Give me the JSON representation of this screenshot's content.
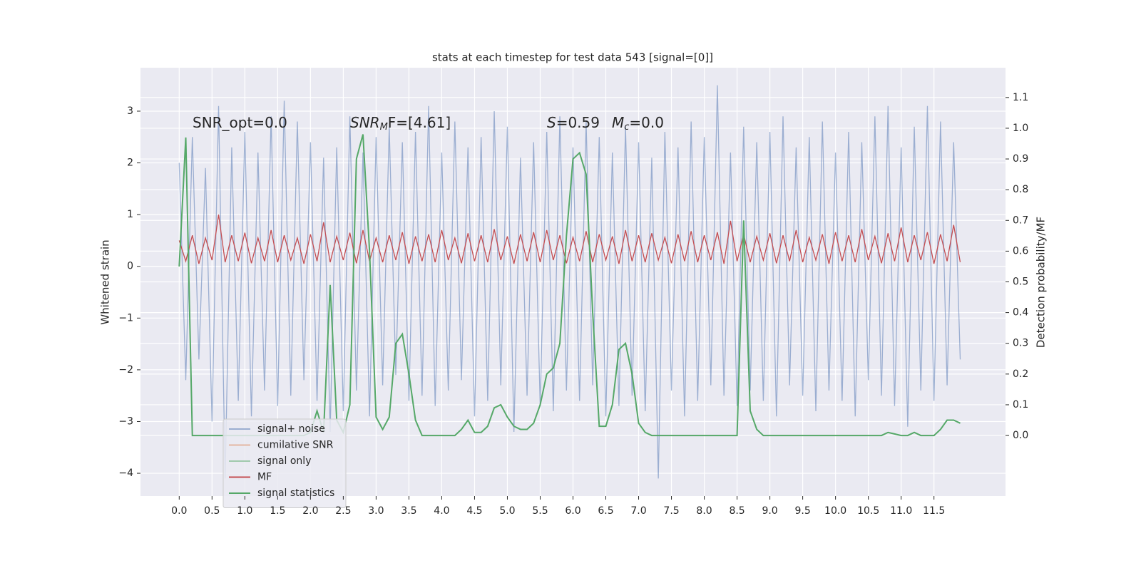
{
  "chart_data": {
    "type": "line",
    "title": "stats at each timestep for test data 543 [signal=[0]]",
    "y_label": "Whitened strain",
    "y2_label": "Detection probability/MF",
    "annotations": [
      {
        "text": "SNR_opt=0.0"
      },
      {
        "text": "SNR",
        "sub": "M",
        "tail": "F=[4.61]"
      },
      {
        "text": "S",
        "tail": "=0.59"
      },
      {
        "text": "M",
        "sub": "c",
        "tail": "=0.0"
      }
    ],
    "grid": true,
    "legend": "lower left",
    "xlim": [
      -0.59,
      12.59
    ],
    "ylim": [
      -4.44,
      3.84
    ],
    "y2lim": [
      -0.197,
      1.197
    ],
    "xticks": [
      {
        "value": 0,
        "label": "0.0"
      },
      0.5,
      {
        "value": 1,
        "label": "1.0"
      },
      1.5,
      {
        "value": 2,
        "label": "2.0"
      },
      2.5,
      {
        "value": 3,
        "label": "3.0"
      },
      3.5,
      {
        "value": 4,
        "label": "4.0"
      },
      4.5,
      {
        "value": 5,
        "label": "5.0"
      },
      5.5,
      {
        "value": 6,
        "label": "6.0"
      },
      6.5,
      {
        "value": 7,
        "label": "7.0"
      },
      7.5,
      {
        "value": 8,
        "label": "8.0"
      },
      8.5,
      {
        "value": 9,
        "label": "9.0"
      },
      9.5,
      {
        "value": 10,
        "label": "10.0"
      },
      10.5,
      {
        "value": 11,
        "label": "11.0"
      },
      11.5
    ],
    "yticks": [
      {
        "value": -4,
        "label": "−4"
      },
      {
        "value": -3,
        "label": "−3"
      },
      {
        "value": -2,
        "label": "−2"
      },
      {
        "value": -1,
        "label": "−1"
      },
      0,
      1,
      2,
      3
    ],
    "y2ticks": [
      {
        "value": 0,
        "label": "0.0"
      },
      0.1,
      0.2,
      0.3,
      0.4,
      0.5,
      0.6,
      0.7,
      0.8,
      0.9,
      {
        "value": 1,
        "label": "1.0"
      },
      1.1
    ],
    "x": [
      0,
      0.1,
      0.2,
      0.3,
      0.4,
      0.5,
      0.6,
      0.7,
      0.8,
      0.9,
      1,
      1.1,
      1.2,
      1.3,
      1.4,
      1.5,
      1.6,
      1.7,
      1.8,
      1.9,
      2,
      2.1,
      2.2,
      2.3,
      2.4,
      2.5,
      2.6,
      2.7,
      2.8,
      2.9,
      3,
      3.1,
      3.2,
      3.3,
      3.4,
      3.5,
      3.6,
      3.7,
      3.8,
      3.9,
      4,
      4.1,
      4.2,
      4.3,
      4.4,
      4.5,
      4.6,
      4.7,
      4.8,
      4.9,
      5,
      5.1,
      5.2,
      5.3,
      5.4,
      5.5,
      5.6,
      5.7,
      5.8,
      5.9,
      6,
      6.1,
      6.2,
      6.3,
      6.4,
      6.5,
      6.6,
      6.7,
      6.8,
      6.9,
      7,
      7.1,
      7.2,
      7.3,
      7.4,
      7.5,
      7.6,
      7.7,
      7.8,
      7.9,
      8,
      8.1,
      8.2,
      8.3,
      8.4,
      8.5,
      8.6,
      8.7,
      8.8,
      8.9,
      9,
      9.1,
      9.2,
      9.3,
      9.4,
      9.5,
      9.6,
      9.7,
      9.8,
      9.9,
      10,
      10.1,
      10.2,
      10.3,
      10.4,
      10.5,
      10.6,
      10.7,
      10.8,
      10.9,
      11,
      11.1,
      11.2,
      11.3,
      11.4,
      11.5,
      11.6,
      11.7,
      11.8,
      11.9
    ],
    "series": [
      {
        "name": "signal+ noise",
        "color": "#4c72b0",
        "alpha": 0.5,
        "values": [
          2.0,
          -2.2,
          2.5,
          -1.8,
          1.9,
          -3.0,
          3.1,
          -4.1,
          2.3,
          -2.6,
          2.6,
          -2.9,
          2.2,
          -2.4,
          2.9,
          -2.7,
          3.2,
          -2.5,
          2.8,
          -2.2,
          2.4,
          -2.6,
          2.1,
          -3.2,
          2.3,
          -2.8,
          2.9,
          -2.4,
          2.2,
          -2.9,
          2.5,
          -2.3,
          2.7,
          -2.1,
          2.4,
          -2.6,
          2.6,
          -2.5,
          3.1,
          -2.7,
          2.2,
          -2.4,
          2.8,
          -2.2,
          2.3,
          -2.9,
          2.5,
          -2.6,
          3.0,
          -2.3,
          2.7,
          -3.2,
          2.1,
          -2.5,
          2.4,
          -2.7,
          2.6,
          -2.8,
          2.9,
          -2.4,
          2.3,
          -2.6,
          2.8,
          -2.3,
          2.5,
          -2.9,
          2.2,
          -2.7,
          2.7,
          -2.5,
          2.4,
          -2.8,
          2.1,
          -4.1,
          2.6,
          -2.4,
          2.3,
          -2.9,
          2.8,
          -2.6,
          2.5,
          -2.3,
          3.5,
          -2.5,
          2.2,
          -2.7,
          2.7,
          -2.4,
          2.4,
          -2.6,
          2.6,
          -2.9,
          2.9,
          -2.3,
          2.3,
          -2.5,
          2.5,
          -2.8,
          2.8,
          -2.4,
          2.2,
          -2.6,
          2.6,
          -2.9,
          2.4,
          -2.2,
          2.9,
          -2.5,
          3.1,
          -2.7,
          2.3,
          -3.1,
          2.7,
          -2.4,
          3.1,
          -2.6,
          2.8,
          -2.3,
          2.4,
          -1.8
        ]
      },
      {
        "name": "cumilative SNR",
        "color": "#dd8452",
        "alpha": 0.5
      },
      {
        "name": "signal only",
        "color": "#55a868",
        "alpha": 0.5
      },
      {
        "name": "MF",
        "color": "#c44e52",
        "alpha": 1,
        "values": [
          0.5,
          0.1,
          0.6,
          0.05,
          0.55,
          0.12,
          1.0,
          0.08,
          0.6,
          0.1,
          0.65,
          0.06,
          0.55,
          0.1,
          0.7,
          0.08,
          0.6,
          0.12,
          0.55,
          0.05,
          0.62,
          0.1,
          0.85,
          0.08,
          0.58,
          0.12,
          0.65,
          0.06,
          0.7,
          0.1,
          0.55,
          0.08,
          0.6,
          0.12,
          0.66,
          0.05,
          0.58,
          0.1,
          0.62,
          0.08,
          0.7,
          0.12,
          0.55,
          0.06,
          0.64,
          0.1,
          0.6,
          0.08,
          0.72,
          0.12,
          0.58,
          0.05,
          0.62,
          0.1,
          0.66,
          0.08,
          0.7,
          0.12,
          0.6,
          0.06,
          0.56,
          0.1,
          0.68,
          0.08,
          0.62,
          0.12,
          0.58,
          0.05,
          0.7,
          0.1,
          0.6,
          0.08,
          0.64,
          0.12,
          0.56,
          0.06,
          0.62,
          0.1,
          0.68,
          0.08,
          0.6,
          0.12,
          0.66,
          0.05,
          0.88,
          0.1,
          0.62,
          0.08,
          0.58,
          0.12,
          0.64,
          0.06,
          0.6,
          0.1,
          0.7,
          0.08,
          0.56,
          0.12,
          0.62,
          0.05,
          0.66,
          0.1,
          0.6,
          0.08,
          0.72,
          0.12,
          0.58,
          0.06,
          0.64,
          0.1,
          0.75,
          0.08,
          0.6,
          0.12,
          0.66,
          0.05,
          0.62,
          0.1,
          0.8,
          0.08
        ]
      },
      {
        "name": "signal statistics",
        "color": "#55a868",
        "alpha": 1,
        "axis": "y2",
        "values": [
          0.55,
          0.97,
          0,
          0,
          0,
          0,
          0,
          0,
          0,
          0,
          0,
          0,
          0,
          0,
          0,
          0,
          0,
          0,
          0,
          0,
          0.01,
          0.08,
          0.01,
          0.49,
          0.05,
          0.01,
          0.1,
          0.9,
          0.98,
          0.6,
          0.06,
          0.02,
          0.06,
          0.3,
          0.33,
          0.2,
          0.05,
          0,
          0,
          0,
          0,
          0,
          0,
          0.02,
          0.05,
          0.01,
          0.01,
          0.03,
          0.09,
          0.1,
          0.06,
          0.03,
          0.02,
          0.02,
          0.04,
          0.1,
          0.2,
          0.22,
          0.3,
          0.65,
          0.9,
          0.92,
          0.85,
          0.4,
          0.03,
          0.03,
          0.1,
          0.28,
          0.3,
          0.2,
          0.04,
          0.01,
          0,
          0,
          0,
          0,
          0,
          0,
          0,
          0,
          0,
          0,
          0,
          0,
          0,
          0,
          0.7,
          0.08,
          0.02,
          0,
          0,
          0,
          0,
          0,
          0,
          0,
          0,
          0,
          0,
          0,
          0,
          0,
          0,
          0,
          0,
          0,
          0,
          0,
          0.01,
          0.005,
          0,
          0,
          0.01,
          0,
          0,
          0,
          0.02,
          0.05,
          0.05,
          0.04
        ]
      }
    ]
  }
}
